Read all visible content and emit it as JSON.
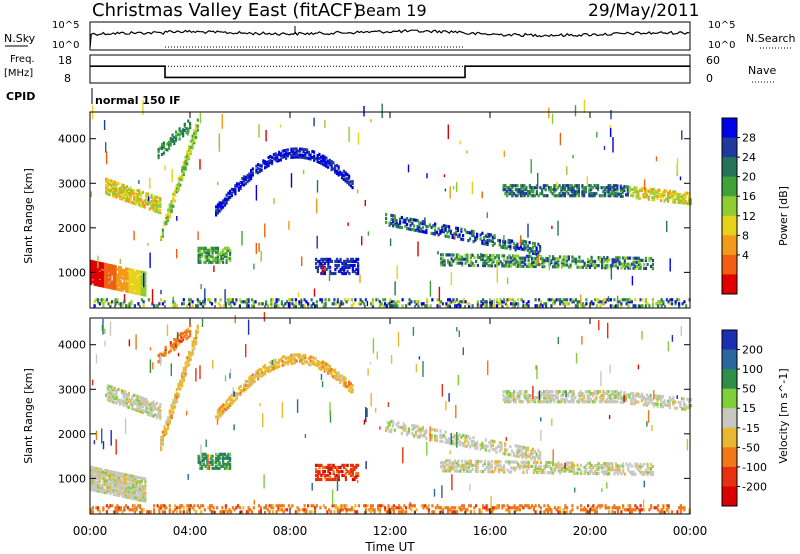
{
  "header": {
    "title": "Christmas Valley East (fitACF)",
    "beam": "Beam 19",
    "date": "29/May/2011"
  },
  "strips": {
    "nsky_label": "N.Sky",
    "nsearch_label": "N.Search",
    "nsky_top": "10^5",
    "nsky_bottom": "10^0",
    "nsearch_top": "10^5",
    "nsearch_bottom": "10^0",
    "freq_label": "Freq.",
    "freq_unit": "[MHz]",
    "freq_top": "18",
    "freq_bottom": "8",
    "nave_label": "Nave",
    "nave_top": "60",
    "nave_bottom": "0",
    "cpid_label": "CPID",
    "cpid_value": "normal 150 IF",
    "freq_data": {
      "t": [
        0,
        3,
        3,
        15,
        15,
        24
      ],
      "mhz": [
        14,
        14,
        10,
        10,
        14,
        14
      ]
    }
  },
  "power_panel": {
    "ylabel": "Slant Range [km]",
    "yticks": [
      "4000",
      "3000",
      "2000",
      "1000"
    ],
    "colorbar_label": "Power [dB]",
    "colorbar_ticks": [
      "28",
      "24",
      "20",
      "16",
      "12",
      "8",
      "4"
    ],
    "colors": [
      "#0000e6",
      "#1f3a9c",
      "#25745a",
      "#3fa33a",
      "#8fce33",
      "#e6d21a",
      "#f29a1a",
      "#f06010",
      "#e00000"
    ]
  },
  "velocity_panel": {
    "ylabel": "Slant Range [km]",
    "yticks": [
      "4000",
      "3000",
      "2000",
      "1000"
    ],
    "colorbar_label": "Velocity [m s^-1]",
    "colorbar_ticks": [
      "200",
      "100",
      "50",
      "15",
      "-15",
      "-50",
      "-100",
      "-200"
    ],
    "colors": [
      "#1c2fb0",
      "#2a66a0",
      "#2f8f4a",
      "#7fcf3a",
      "#c8c8c0",
      "#e8b830",
      "#f07818",
      "#e83010",
      "#d80000"
    ]
  },
  "xaxis": {
    "ticks": [
      "00:00",
      "04:00",
      "08:00",
      "12:00",
      "16:00",
      "20:00",
      "00:00"
    ],
    "label": "Time UT"
  },
  "chart_data": [
    {
      "type": "line",
      "name": "Frequency",
      "xlabel": "Time UT",
      "ylabel": "Freq. [MHz]",
      "ylim": [
        8,
        18
      ],
      "x": [
        0,
        3,
        3,
        15,
        15,
        24
      ],
      "y": [
        14,
        14,
        10,
        10,
        14,
        14
      ]
    },
    {
      "type": "heatmap",
      "title": "Power",
      "xlabel": "Time UT",
      "ylabel": "Slant Range [km]",
      "xlim": [
        0,
        24
      ],
      "ylim": [
        200,
        4600
      ],
      "colorbar": "Power [dB]",
      "clim": [
        0,
        32
      ]
    },
    {
      "type": "heatmap",
      "title": "Velocity",
      "xlabel": "Time UT",
      "ylabel": "Slant Range [km]",
      "xlim": [
        0,
        24
      ],
      "ylim": [
        200,
        4600
      ],
      "colorbar": "Velocity [m s^-1]",
      "clim": [
        -250,
        250
      ]
    }
  ]
}
